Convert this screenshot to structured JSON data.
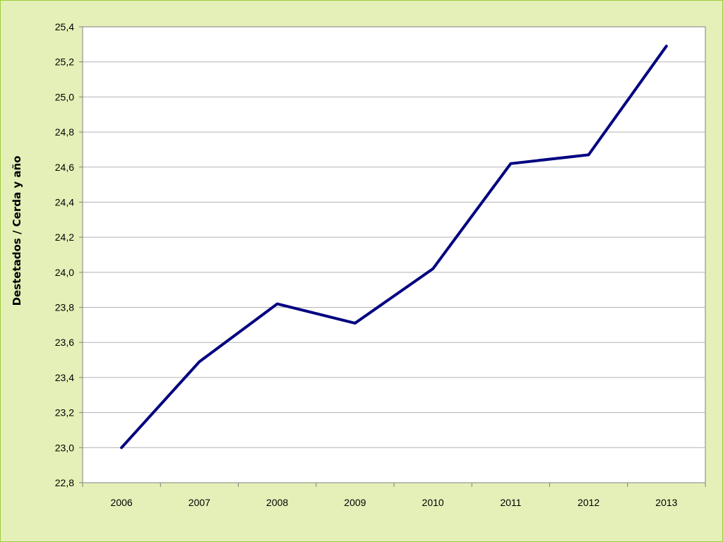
{
  "chart_data": {
    "type": "line",
    "title": "",
    "xlabel": "",
    "ylabel": "Destetados / Cerda y año",
    "x": [
      "2006",
      "2007",
      "2008",
      "2009",
      "2010",
      "2011",
      "2012",
      "2013"
    ],
    "series": [
      {
        "values": [
          23.0,
          23.49,
          23.82,
          23.71,
          24.02,
          24.62,
          24.67,
          25.29
        ]
      }
    ],
    "ylim": [
      22.8,
      25.4
    ],
    "yticks": [
      "22,8",
      "23,0",
      "23,2",
      "23,4",
      "23,6",
      "23,8",
      "24,0",
      "24,2",
      "24,4",
      "24,6",
      "24,8",
      "25,0",
      "25,2",
      "25,4"
    ],
    "grid": true,
    "legend": "none",
    "colors": {
      "line": "#000080",
      "background": "#e4f0b8",
      "plot_area": "#ffffff",
      "gridline": "#b3b3b3"
    }
  }
}
